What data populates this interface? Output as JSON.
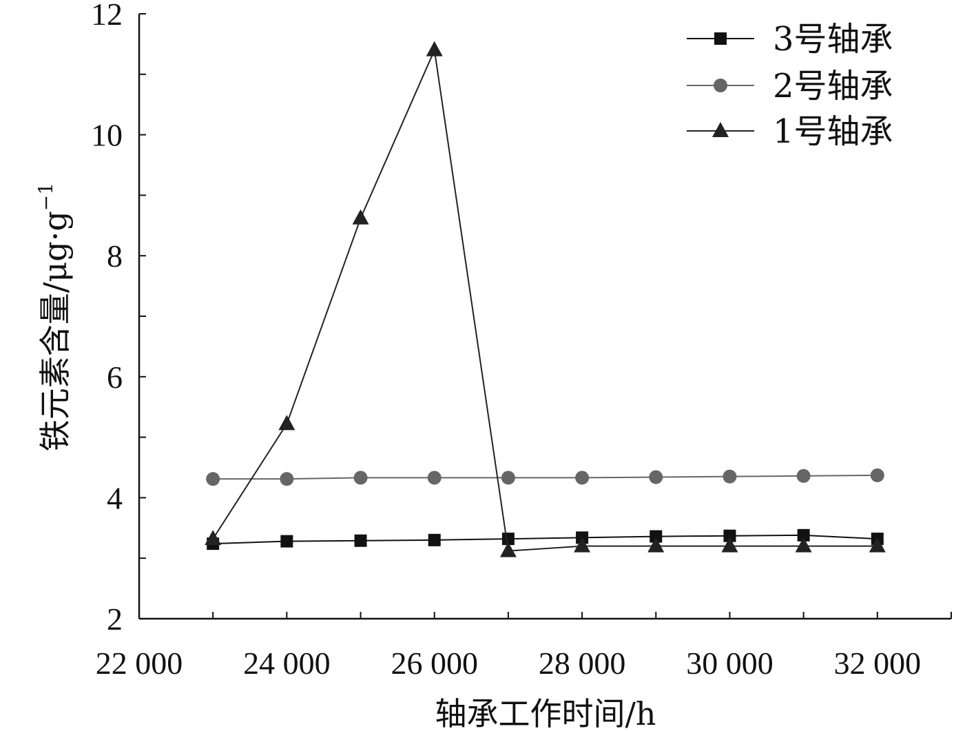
{
  "chart_data": {
    "type": "line",
    "xlabel": "轴承工作时间/h",
    "ylabel": "铁元素含量/μg·g",
    "ylabel_sup": "−1",
    "xlim": [
      22000,
      33000
    ],
    "ylim": [
      2,
      12
    ],
    "x_ticks": [
      22000,
      24000,
      26000,
      28000,
      30000,
      32000
    ],
    "x_tick_labels": [
      "22 000",
      "24 000",
      "26 000",
      "28 000",
      "30 000",
      "32 000"
    ],
    "y_ticks": [
      2,
      4,
      6,
      8,
      10,
      12
    ],
    "y_tick_labels": [
      "2",
      "4",
      "6",
      "8",
      "10",
      "12"
    ],
    "x": [
      23000,
      24000,
      25000,
      26000,
      27000,
      28000,
      29000,
      30000,
      31000,
      32000
    ],
    "series": [
      {
        "name": "3号轴承",
        "marker": "square",
        "color": "#111111",
        "values": [
          3.24,
          3.28,
          3.29,
          3.3,
          3.32,
          3.34,
          3.36,
          3.37,
          3.38,
          3.32
        ]
      },
      {
        "name": "2号轴承",
        "marker": "circle",
        "color": "#666666",
        "values": [
          4.31,
          4.31,
          4.33,
          4.33,
          4.33,
          4.33,
          4.34,
          4.35,
          4.36,
          4.37
        ]
      },
      {
        "name": "1号轴承",
        "marker": "triangle",
        "color": "#222222",
        "values": [
          3.32,
          5.22,
          8.62,
          11.4,
          3.12,
          3.2,
          3.2,
          3.2,
          3.2,
          3.2
        ]
      }
    ],
    "legend_position": "top-right",
    "grid": false
  }
}
